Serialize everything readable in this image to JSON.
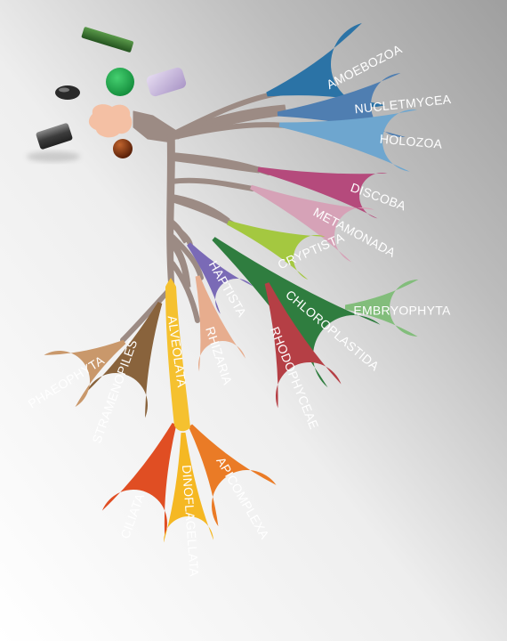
{
  "colors": {
    "trunk": "#9c8b84",
    "background_light": "#ffffff",
    "background_dark": "#b8b8b8"
  },
  "clades": [
    {
      "id": "amoebozoa",
      "label": "AMOEBOZOA",
      "color": "#2b73a6",
      "lineage": "amorphea"
    },
    {
      "id": "nucletmycea",
      "label": "NUCLETMYCEA",
      "color": "#4f7eb1",
      "lineage": "amorphea"
    },
    {
      "id": "holozoa",
      "label": "HOLOZOA",
      "color": "#6ea6cf",
      "lineage": "amorphea"
    },
    {
      "id": "discoba",
      "label": "DISCOBA",
      "color": "#b54a7c",
      "lineage": "excavata"
    },
    {
      "id": "metamonada",
      "label": "METAMONADA",
      "color": "#d6a2b7",
      "lineage": "excavata"
    },
    {
      "id": "cryptista",
      "label": "CRYPTISTA",
      "color": "#a4c840",
      "lineage": "other"
    },
    {
      "id": "embryophyta",
      "label": "EMBRYOPHYTA",
      "color": "#82bd7b",
      "lineage": "archaeplastida"
    },
    {
      "id": "chloroplastida",
      "label": "CHLOROPLASTIDA",
      "color": "#2f7d3f",
      "lineage": "archaeplastida"
    },
    {
      "id": "rhodophyceae",
      "label": "RHODOPHYCEAE",
      "color": "#b53f45",
      "lineage": "archaeplastida"
    },
    {
      "id": "haptista",
      "label": "HAPTISTA",
      "color": "#7a6ab6",
      "lineage": "other"
    },
    {
      "id": "rhizaria",
      "label": "RHIZARIA",
      "color": "#e7ad8e",
      "lineage": "sar"
    },
    {
      "id": "alveolata",
      "label": "ALVEOLATA",
      "color": "#f5c12f",
      "lineage": "sar"
    },
    {
      "id": "stramenopiles",
      "label": "STRAMENOPILES",
      "color": "#89633c",
      "lineage": "sar"
    },
    {
      "id": "phaeophyta",
      "label": "PHAEOPHYTA",
      "color": "#c9986b",
      "lineage": "sar"
    },
    {
      "id": "ciliata",
      "label": "CILIATA",
      "color": "#e04e23",
      "lineage": "alveolata"
    },
    {
      "id": "dinoflagellata",
      "label": "DINOFLAGELLATA",
      "color": "#f5b823",
      "lineage": "alveolata"
    },
    {
      "id": "apicomplexa",
      "label": "APICOMPLEXA",
      "color": "#ea7b26",
      "lineage": "alveolata"
    }
  ],
  "objects": [
    {
      "id": "green-rod",
      "color": "#3a7a3a"
    },
    {
      "id": "green-disc",
      "color": "#1aa84a"
    },
    {
      "id": "lavender-block",
      "color": "#c9b6e0"
    },
    {
      "id": "dark-pebble",
      "color": "#2a2a2a"
    },
    {
      "id": "peach-blob",
      "color": "#f4c0a4"
    },
    {
      "id": "grey-tube",
      "color": "#555555"
    },
    {
      "id": "brown-bead",
      "color": "#8a3a15"
    }
  ]
}
